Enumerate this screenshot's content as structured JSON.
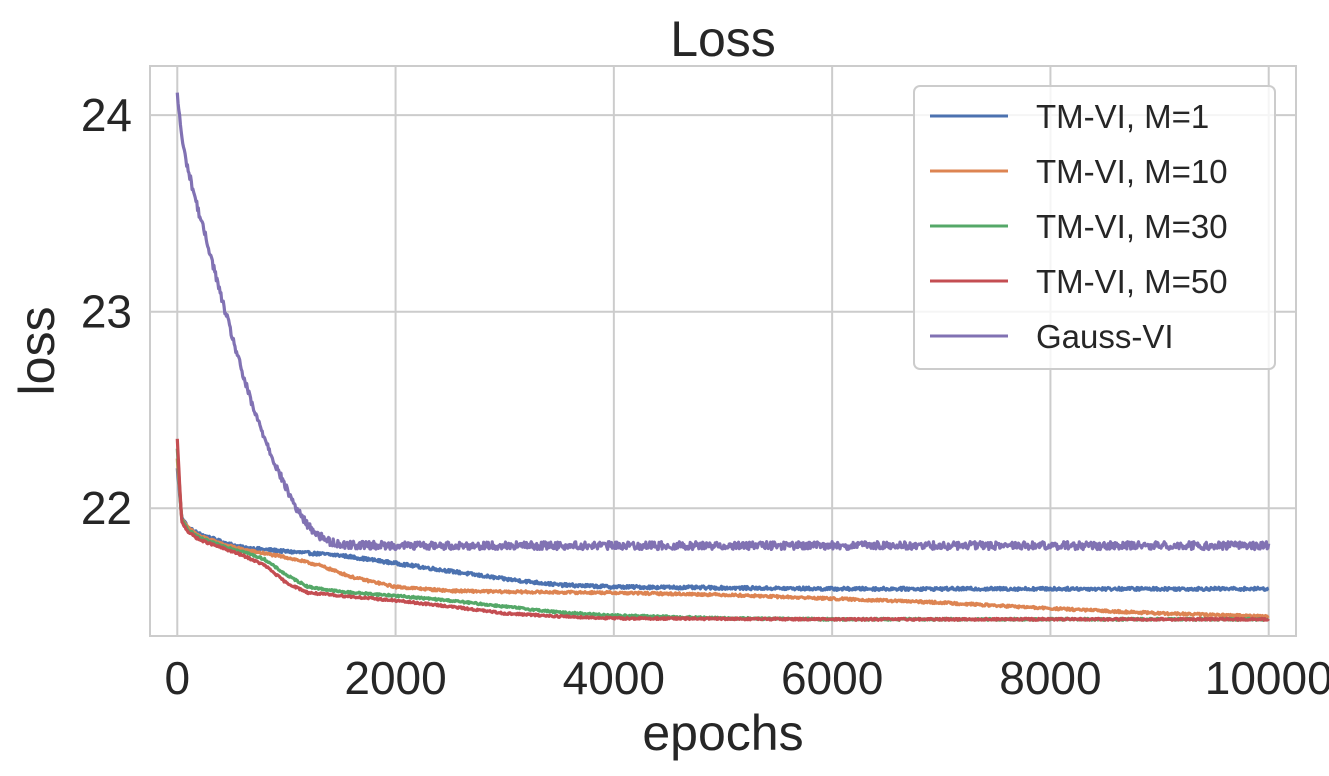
{
  "chart_data": {
    "type": "line",
    "title": "Loss",
    "xlabel": "epochs",
    "ylabel": "loss",
    "xlim": [
      -250,
      10250
    ],
    "ylim": [
      21.35,
      24.25
    ],
    "xticks": [
      0,
      2000,
      4000,
      6000,
      8000,
      10000
    ],
    "xtick_labels": [
      "0",
      "2000",
      "4000",
      "6000",
      "8000",
      "10000"
    ],
    "yticks": [
      22,
      23,
      24
    ],
    "ytick_labels": [
      "22",
      "23",
      "24"
    ],
    "grid": true,
    "legend_position": "top-right",
    "series": [
      {
        "name": "TM-VI, M=1",
        "color": "#4c72b0",
        "noise": 0.008,
        "points": [
          [
            0,
            22.2
          ],
          [
            40,
            21.96
          ],
          [
            100,
            21.9
          ],
          [
            200,
            21.87
          ],
          [
            400,
            21.83
          ],
          [
            600,
            21.8
          ],
          [
            1000,
            21.78
          ],
          [
            1500,
            21.76
          ],
          [
            2000,
            21.72
          ],
          [
            2500,
            21.68
          ],
          [
            3000,
            21.64
          ],
          [
            3500,
            21.61
          ],
          [
            4000,
            21.6
          ],
          [
            5000,
            21.595
          ],
          [
            6000,
            21.59
          ],
          [
            7000,
            21.59
          ],
          [
            8000,
            21.59
          ],
          [
            9000,
            21.59
          ],
          [
            10000,
            21.59
          ]
        ]
      },
      {
        "name": "TM-VI, M=10",
        "color": "#dd8452",
        "noise": 0.006,
        "points": [
          [
            0,
            22.25
          ],
          [
            40,
            21.95
          ],
          [
            100,
            21.9
          ],
          [
            200,
            21.86
          ],
          [
            400,
            21.82
          ],
          [
            600,
            21.79
          ],
          [
            800,
            21.77
          ],
          [
            1000,
            21.75
          ],
          [
            1300,
            21.71
          ],
          [
            1600,
            21.65
          ],
          [
            2000,
            21.6
          ],
          [
            2500,
            21.58
          ],
          [
            3000,
            21.575
          ],
          [
            4000,
            21.57
          ],
          [
            5000,
            21.56
          ],
          [
            6000,
            21.54
          ],
          [
            7000,
            21.52
          ],
          [
            8000,
            21.49
          ],
          [
            9000,
            21.465
          ],
          [
            10000,
            21.45
          ]
        ]
      },
      {
        "name": "TM-VI, M=30",
        "color": "#55a868",
        "noise": 0.005,
        "points": [
          [
            0,
            22.3
          ],
          [
            40,
            21.94
          ],
          [
            100,
            21.89
          ],
          [
            200,
            21.85
          ],
          [
            400,
            21.81
          ],
          [
            600,
            21.78
          ],
          [
            800,
            21.74
          ],
          [
            1000,
            21.66
          ],
          [
            1200,
            21.6
          ],
          [
            1500,
            21.575
          ],
          [
            2000,
            21.555
          ],
          [
            2500,
            21.53
          ],
          [
            3000,
            21.5
          ],
          [
            3500,
            21.47
          ],
          [
            4000,
            21.455
          ],
          [
            5000,
            21.44
          ],
          [
            6000,
            21.435
          ],
          [
            8000,
            21.435
          ],
          [
            10000,
            21.435
          ]
        ]
      },
      {
        "name": "TM-VI, M=50",
        "color": "#c44e52",
        "noise": 0.005,
        "points": [
          [
            0,
            22.35
          ],
          [
            40,
            21.93
          ],
          [
            100,
            21.88
          ],
          [
            200,
            21.84
          ],
          [
            400,
            21.8
          ],
          [
            600,
            21.76
          ],
          [
            800,
            21.71
          ],
          [
            1000,
            21.62
          ],
          [
            1200,
            21.57
          ],
          [
            1500,
            21.555
          ],
          [
            2000,
            21.53
          ],
          [
            2500,
            21.5
          ],
          [
            3000,
            21.465
          ],
          [
            3500,
            21.45
          ],
          [
            4000,
            21.44
          ],
          [
            6000,
            21.435
          ],
          [
            8000,
            21.435
          ],
          [
            10000,
            21.435
          ]
        ]
      },
      {
        "name": "Gauss-VI",
        "color": "#8172b3",
        "noise": 0.02,
        "points": [
          [
            0,
            24.1
          ],
          [
            50,
            23.85
          ],
          [
            100,
            23.72
          ],
          [
            200,
            23.5
          ],
          [
            300,
            23.3
          ],
          [
            400,
            23.08
          ],
          [
            500,
            22.88
          ],
          [
            600,
            22.68
          ],
          [
            700,
            22.5
          ],
          [
            800,
            22.36
          ],
          [
            900,
            22.22
          ],
          [
            1000,
            22.1
          ],
          [
            1100,
            21.99
          ],
          [
            1200,
            21.91
          ],
          [
            1300,
            21.86
          ],
          [
            1400,
            21.83
          ],
          [
            1500,
            21.815
          ],
          [
            2000,
            21.81
          ],
          [
            4000,
            21.81
          ],
          [
            6000,
            21.81
          ],
          [
            8000,
            21.81
          ],
          [
            10000,
            21.81
          ]
        ]
      }
    ]
  }
}
